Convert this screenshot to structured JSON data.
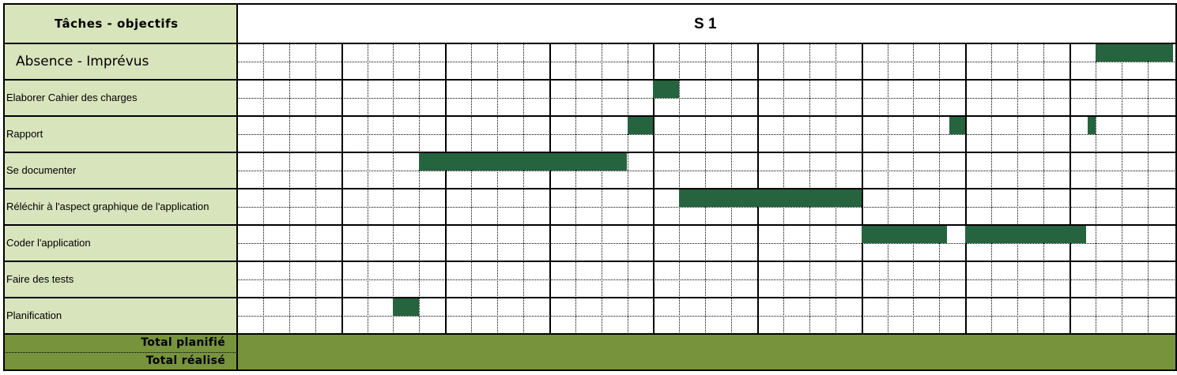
{
  "header": {
    "tasks_title": "Tâches - objectifs",
    "week_title": "S 1"
  },
  "colors": {
    "label_bg": "#d8e4bc",
    "bar": "#26633f",
    "total_bg": "#77933c",
    "grid": "#000000"
  },
  "tasks": [
    {
      "label": "Absence - Imprévus",
      "style": "large",
      "bars": [
        [
          33,
          36
        ]
      ]
    },
    {
      "label": "Elaborer Cahier des charges",
      "style": "normal",
      "bars": [
        [
          16,
          17
        ]
      ]
    },
    {
      "label": "Rapport",
      "style": "normal",
      "bars": [
        [
          15,
          16
        ],
        [
          27.4,
          28
        ],
        [
          32.7,
          33
        ]
      ]
    },
    {
      "label": "Se documenter",
      "style": "normal",
      "bars": [
        [
          7,
          15
        ]
      ]
    },
    {
      "label": "Réléchir à l'aspect graphique de l'application",
      "style": "normal",
      "bars": [
        [
          17,
          24
        ]
      ]
    },
    {
      "label": "Coder l'application",
      "style": "normal",
      "bars": [
        [
          24,
          27.3
        ],
        [
          28,
          32.65
        ]
      ]
    },
    {
      "label": "Faire des tests",
      "style": "normal",
      "bars": []
    },
    {
      "label": "Planification",
      "style": "normal",
      "bars": [
        [
          6,
          7
        ]
      ]
    }
  ],
  "totals": {
    "planned_label": "Total planifié",
    "done_label": "Total réalisé"
  }
}
